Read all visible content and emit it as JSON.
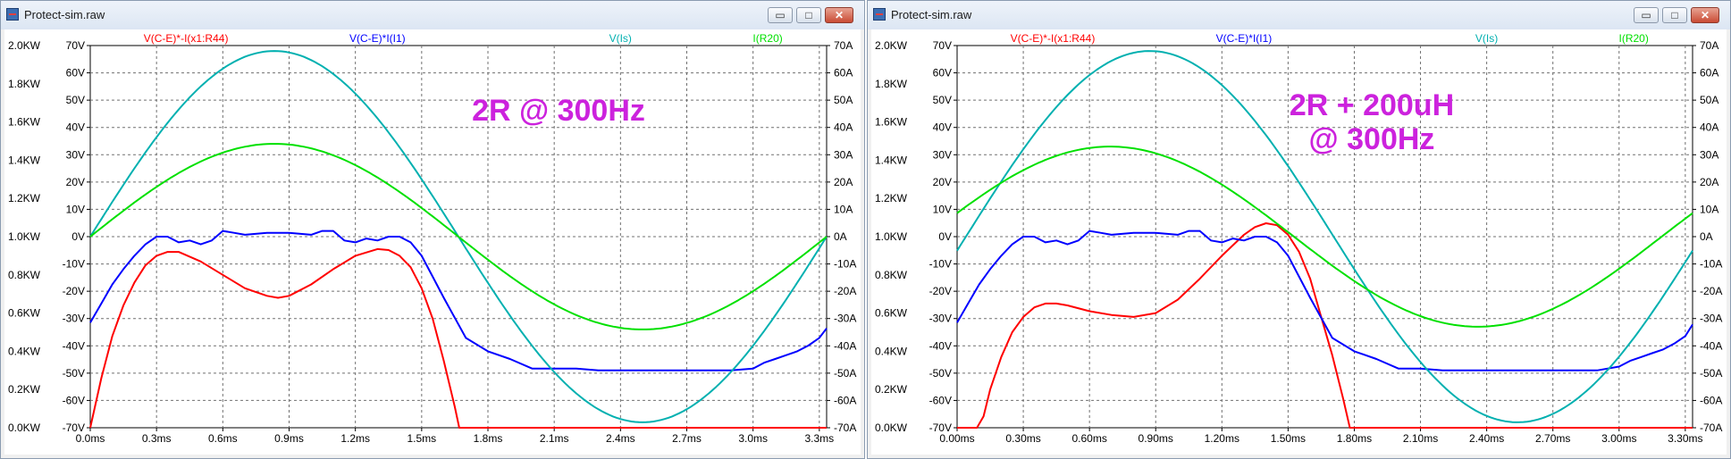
{
  "windows": [
    {
      "title": "Protect-sim.raw",
      "buttons": {
        "minimize": "▭",
        "restore": "□",
        "close": "✕"
      },
      "annotation": [
        "2R @ 300Hz"
      ],
      "chart_data": {
        "type": "line",
        "trace_labels": [
          {
            "text": "V(C-E)*-I(x1:R44)",
            "color": "#ff0000"
          },
          {
            "text": "V(C-E)*I(I1)",
            "color": "#0000ff"
          },
          {
            "text": "V(Is)",
            "color": "#00b0b0"
          },
          {
            "text": "I(R20)",
            "color": "#00e000"
          }
        ],
        "xaxis": {
          "min": 0,
          "max": 3.333,
          "ticks": [
            0,
            0.3,
            0.6,
            0.9,
            1.2,
            1.5,
            1.8,
            2.1,
            2.4,
            2.7,
            3.0,
            3.3
          ],
          "tick_labels": [
            "0.0ms",
            "0.3ms",
            "0.6ms",
            "0.9ms",
            "1.2ms",
            "1.5ms",
            "1.8ms",
            "2.1ms",
            "2.4ms",
            "2.7ms",
            "3.0ms",
            "3.3ms"
          ]
        },
        "y_power_ticks": [
          "0.0KW",
          "0.2KW",
          "0.4KW",
          "0.6KW",
          "0.8KW",
          "1.0KW",
          "1.2KW",
          "1.4KW",
          "1.6KW",
          "1.8KW",
          "2.0KW"
        ],
        "y_volt_ticks": [
          "-70V",
          "-60V",
          "-50V",
          "-40V",
          "-30V",
          "-20V",
          "-10V",
          "0V",
          "10V",
          "20V",
          "30V",
          "40V",
          "50V",
          "60V",
          "70V"
        ],
        "y_amp_ticks": [
          "-70A",
          "-60A",
          "-50A",
          "-40A",
          "-30A",
          "-20A",
          "-10A",
          "0A",
          "10A",
          "20A",
          "30A",
          "40A",
          "50A",
          "60A",
          "70A"
        ],
        "series": [
          {
            "name": "V(C-E)*-I(x1:R44)",
            "color": "#ff0000",
            "unit": "W",
            "x": [
              0,
              0.05,
              0.1,
              0.15,
              0.2,
              0.25,
              0.3,
              0.35,
              0.4,
              0.5,
              0.6,
              0.7,
              0.8,
              0.85,
              0.9,
              1.0,
              1.1,
              1.2,
              1.3,
              1.35,
              1.4,
              1.45,
              1.5,
              1.55,
              1.6,
              1.65,
              1.67,
              3.333
            ],
            "y": [
              0,
              260,
              480,
              640,
              760,
              850,
              900,
              920,
              920,
              870,
              800,
              730,
              690,
              680,
              690,
              750,
              830,
              900,
              935,
              930,
              900,
              840,
              730,
              570,
              350,
              110,
              0,
              0
            ]
          },
          {
            "name": "V(C-E)*I(I1)",
            "color": "#0000ff",
            "unit": "W",
            "x": [
              0,
              0.05,
              0.1,
              0.15,
              0.2,
              0.25,
              0.3,
              0.35,
              0.4,
              0.45,
              0.5,
              0.55,
              0.6,
              0.65,
              0.7,
              0.8,
              0.9,
              1.0,
              1.05,
              1.1,
              1.15,
              1.2,
              1.25,
              1.3,
              1.35,
              1.4,
              1.45,
              1.5,
              1.55,
              1.6,
              1.7,
              1.8,
              1.9,
              2.0,
              2.1,
              2.2,
              2.3,
              2.4,
              2.5,
              2.6,
              2.7,
              2.8,
              2.9,
              3.0,
              3.05,
              3.1,
              3.15,
              3.2,
              3.25,
              3.3,
              3.333
            ],
            "y": [
              550,
              650,
              750,
              830,
              900,
              960,
              1000,
              1000,
              970,
              980,
              960,
              980,
              1030,
              1020,
              1010,
              1020,
              1020,
              1010,
              1030,
              1030,
              980,
              970,
              990,
              980,
              1000,
              1000,
              970,
              900,
              790,
              680,
              470,
              400,
              360,
              310,
              310,
              310,
              300,
              300,
              300,
              300,
              300,
              300,
              300,
              310,
              340,
              360,
              380,
              400,
              430,
              470,
              520
            ]
          },
          {
            "name": "V(Is)",
            "color": "#00b0b0",
            "unit": "V",
            "amplitude": 68,
            "phase_ms": 0
          },
          {
            "name": "I(R20)",
            "color": "#00e000",
            "unit": "A",
            "amplitude": 34,
            "phase_ms": 0
          }
        ]
      }
    },
    {
      "title": "Protect-sim.raw",
      "buttons": {
        "minimize": "▭",
        "restore": "□",
        "close": "✕"
      },
      "annotation": [
        "2R + 200uH",
        "@ 300Hz"
      ],
      "chart_data": {
        "type": "line",
        "trace_labels": [
          {
            "text": "V(C-E)*-I(x1:R44)",
            "color": "#ff0000"
          },
          {
            "text": "V(C-E)*I(I1)",
            "color": "#0000ff"
          },
          {
            "text": "V(Is)",
            "color": "#00b0b0"
          },
          {
            "text": "I(R20)",
            "color": "#00e000"
          }
        ],
        "xaxis": {
          "min": 0,
          "max": 3.333,
          "ticks": [
            0,
            0.3,
            0.6,
            0.9,
            1.2,
            1.5,
            1.8,
            2.1,
            2.4,
            2.7,
            3.0,
            3.3
          ],
          "tick_labels": [
            "0.00ms",
            "0.30ms",
            "0.60ms",
            "0.90ms",
            "1.20ms",
            "1.50ms",
            "1.80ms",
            "2.10ms",
            "2.40ms",
            "2.70ms",
            "3.00ms",
            "3.30ms"
          ]
        },
        "y_power_ticks": [
          "0.0KW",
          "0.2KW",
          "0.4KW",
          "0.6KW",
          "0.8KW",
          "1.0KW",
          "1.2KW",
          "1.4KW",
          "1.6KW",
          "1.8KW",
          "2.0KW"
        ],
        "y_volt_ticks": [
          "-70V",
          "-60V",
          "-50V",
          "-40V",
          "-30V",
          "-20V",
          "-10V",
          "0V",
          "10V",
          "20V",
          "30V",
          "40V",
          "50V",
          "60V",
          "70V"
        ],
        "y_amp_ticks": [
          "-70A",
          "-60A",
          "-50A",
          "-40A",
          "-30A",
          "-20A",
          "-10A",
          "0A",
          "10A",
          "20A",
          "30A",
          "40A",
          "50A",
          "60A",
          "70A"
        ],
        "series": [
          {
            "name": "V(C-E)*-I(x1:R44)",
            "color": "#ff0000",
            "unit": "W",
            "x": [
              0,
              0.09,
              0.12,
              0.15,
              0.2,
              0.25,
              0.3,
              0.35,
              0.4,
              0.45,
              0.5,
              0.6,
              0.7,
              0.8,
              0.9,
              1.0,
              1.1,
              1.2,
              1.3,
              1.35,
              1.4,
              1.45,
              1.5,
              1.55,
              1.6,
              1.65,
              1.7,
              1.75,
              1.78,
              1.8,
              3.333
            ],
            "y": [
              0,
              0,
              60,
              200,
              370,
              500,
              580,
              630,
              650,
              650,
              640,
              610,
              590,
              580,
              600,
              670,
              780,
              900,
              1010,
              1050,
              1070,
              1060,
              1010,
              920,
              780,
              580,
              380,
              150,
              0,
              0,
              0
            ]
          },
          {
            "name": "V(C-E)*I(I1)",
            "color": "#0000ff",
            "unit": "W",
            "x": [
              0,
              0.05,
              0.1,
              0.15,
              0.2,
              0.25,
              0.3,
              0.35,
              0.4,
              0.45,
              0.5,
              0.55,
              0.6,
              0.65,
              0.7,
              0.8,
              0.9,
              1.0,
              1.05,
              1.1,
              1.15,
              1.2,
              1.25,
              1.3,
              1.35,
              1.4,
              1.45,
              1.5,
              1.55,
              1.6,
              1.7,
              1.8,
              1.9,
              2.0,
              2.1,
              2.2,
              2.3,
              2.4,
              2.5,
              2.6,
              2.7,
              2.8,
              2.9,
              3.0,
              3.05,
              3.1,
              3.15,
              3.2,
              3.25,
              3.3,
              3.333
            ],
            "y": [
              550,
              650,
              750,
              830,
              900,
              960,
              1000,
              1000,
              970,
              980,
              960,
              980,
              1030,
              1020,
              1010,
              1020,
              1020,
              1010,
              1030,
              1030,
              980,
              970,
              990,
              980,
              1000,
              1000,
              970,
              900,
              790,
              680,
              470,
              400,
              360,
              310,
              310,
              300,
              300,
              300,
              300,
              300,
              300,
              300,
              300,
              320,
              350,
              370,
              390,
              410,
              440,
              480,
              540
            ]
          },
          {
            "name": "V(Is)",
            "color": "#00b0b0",
            "unit": "V",
            "amplitude": 68,
            "phase_ms": 0.04
          },
          {
            "name": "I(R20)",
            "color": "#00e000",
            "unit": "A",
            "amplitude": 33,
            "phase_ms": -0.14
          }
        ]
      }
    }
  ]
}
